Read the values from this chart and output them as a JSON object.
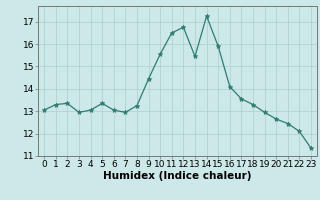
{
  "x": [
    0,
    1,
    2,
    3,
    4,
    5,
    6,
    7,
    8,
    9,
    10,
    11,
    12,
    13,
    14,
    15,
    16,
    17,
    18,
    19,
    20,
    21,
    22,
    23
  ],
  "y": [
    13.05,
    13.3,
    13.35,
    12.95,
    13.05,
    13.35,
    13.05,
    12.95,
    13.25,
    14.45,
    15.55,
    16.5,
    16.75,
    15.45,
    17.25,
    15.9,
    14.1,
    13.55,
    13.3,
    12.95,
    12.65,
    12.45,
    12.1,
    11.35
  ],
  "xlabel": "Humidex (Indice chaleur)",
  "xlim": [
    -0.5,
    23.5
  ],
  "ylim": [
    11,
    17.7
  ],
  "yticks": [
    11,
    12,
    13,
    14,
    15,
    16,
    17
  ],
  "xtick_labels": [
    "0",
    "1",
    "2",
    "3",
    "4",
    "5",
    "6",
    "7",
    "8",
    "9",
    "10",
    "11",
    "12",
    "13",
    "14",
    "15",
    "16",
    "17",
    "18",
    "19",
    "20",
    "21",
    "22",
    "23"
  ],
  "line_color": "#2e7d6e",
  "marker": "*",
  "bg_color": "#cde8e8",
  "grid_color": "#aecece",
  "label_fontsize": 7.5,
  "tick_fontsize": 6.5
}
